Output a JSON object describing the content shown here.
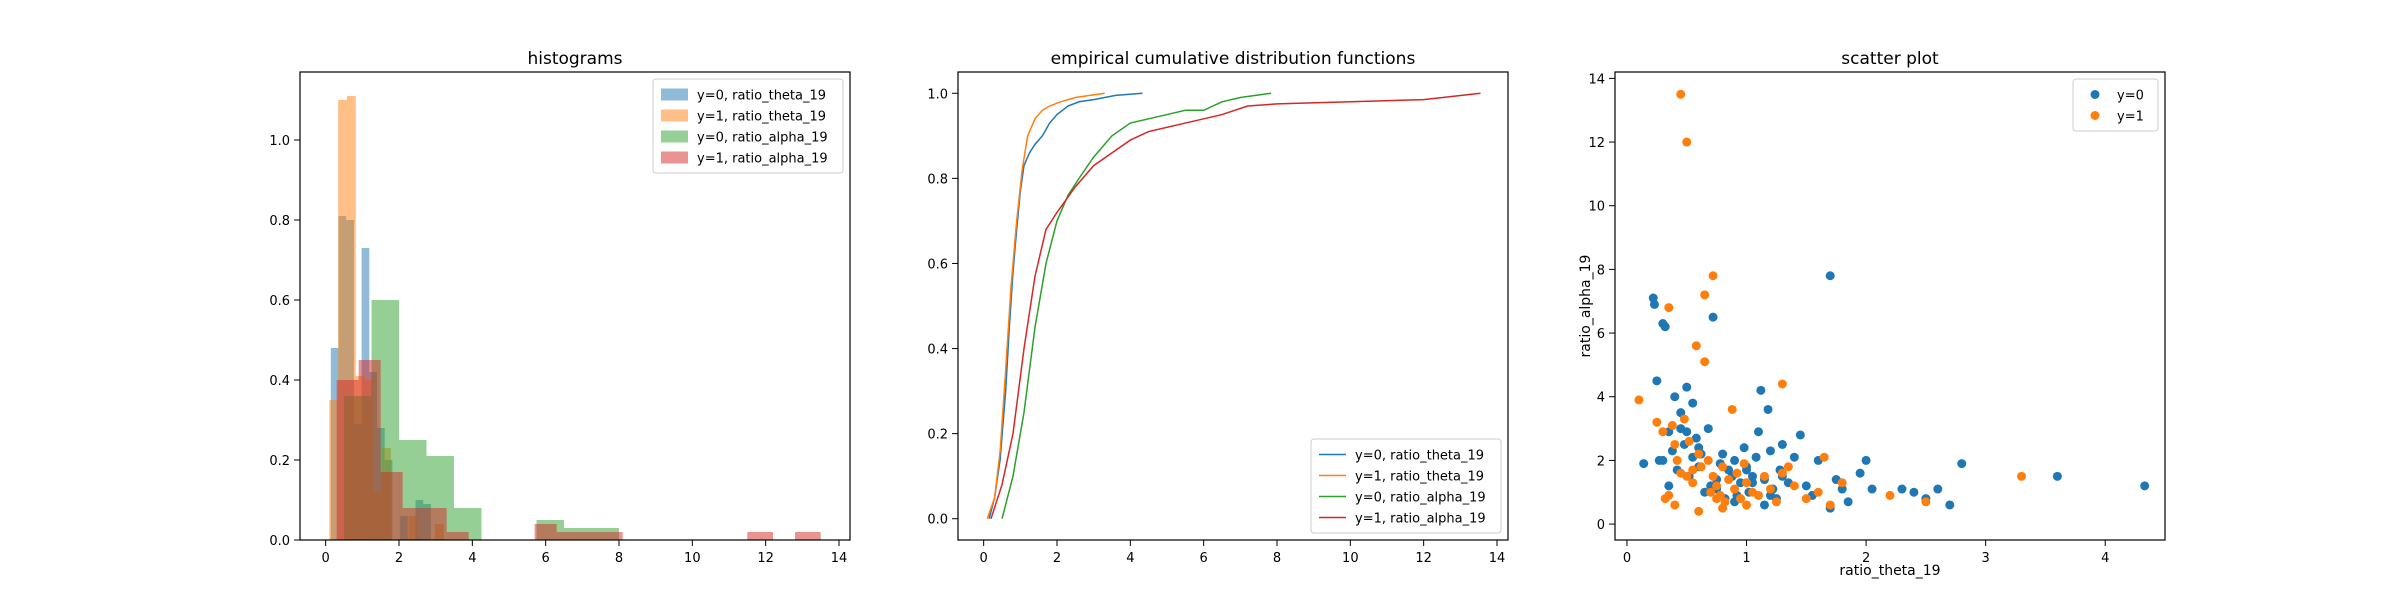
{
  "colors": {
    "blue": "#1f77b4",
    "orange": "#ff7f0e",
    "green": "#2ca02c",
    "red": "#d62728",
    "axis": "#000000",
    "legend_border": "#cccccc"
  },
  "chart_data": [
    {
      "type": "histogram",
      "title": "histograms",
      "xlabel": "",
      "ylabel": "",
      "xlim": [
        -0.7,
        14.3
      ],
      "ylim": [
        0,
        1.17
      ],
      "xticks": [
        "0",
        "2",
        "4",
        "6",
        "8",
        "10",
        "12",
        "14"
      ],
      "yticks": [
        "0.0",
        "0.2",
        "0.4",
        "0.6",
        "0.8",
        "1.0"
      ],
      "legend_position": "top-right",
      "series": [
        {
          "name": "y=0, ratio_theta_19",
          "color": "#1f77b4",
          "alpha": 0.5,
          "bin_edges": [
            0.14,
            0.35,
            0.56,
            0.77,
            0.98,
            1.19,
            1.4,
            1.61,
            1.82,
            2.03,
            2.24,
            2.45,
            2.66,
            2.87
          ],
          "values": [
            0.48,
            0.81,
            0.8,
            0.29,
            0.73,
            0.42,
            0.28,
            0.2,
            0.0,
            0.06,
            0.0,
            0.1,
            0.09
          ]
        },
        {
          "name": "y=1, ratio_theta_19",
          "color": "#ff7f0e",
          "alpha": 0.5,
          "bin_edges": [
            0.1,
            0.34,
            0.58,
            0.82,
            1.06,
            1.3,
            1.54,
            1.78,
            2.02,
            2.26,
            2.5,
            2.74,
            2.98,
            3.22
          ],
          "values": [
            0.35,
            1.1,
            1.11,
            0.41,
            0.4,
            0.12,
            0.23,
            0.0,
            0.0,
            0.06,
            0.0,
            0.0,
            0.04
          ]
        },
        {
          "name": "y=0, ratio_alpha_19",
          "color": "#2ca02c",
          "alpha": 0.5,
          "bin_edges": [
            0.5,
            1.25,
            2.0,
            2.75,
            3.5,
            4.25,
            5.0,
            5.75,
            6.5,
            7.25,
            8.0
          ],
          "values": [
            0.36,
            0.6,
            0.25,
            0.21,
            0.08,
            0.0,
            0.0,
            0.05,
            0.03,
            0.03
          ]
        },
        {
          "name": "y=1, ratio_alpha_19",
          "color": "#d62728",
          "alpha": 0.5,
          "bin_edges": [
            0.3,
            0.9,
            1.5,
            2.1,
            2.7,
            3.3,
            3.9,
            4.5,
            5.1,
            5.7,
            6.3,
            6.9,
            7.5,
            8.1
          ],
          "values": [
            0.4,
            0.45,
            0.17,
            0.08,
            0.08,
            0.02,
            0.0,
            0.0,
            0.0,
            0.04,
            0.02,
            0.02,
            0.02
          ],
          "extra_bars": [
            {
              "x0": 11.5,
              "x1": 12.2,
              "value": 0.02
            },
            {
              "x0": 12.8,
              "x1": 13.5,
              "value": 0.02
            }
          ]
        }
      ]
    },
    {
      "type": "line",
      "title": "empirical cumulative distribution functions",
      "xlabel": "",
      "ylabel": "",
      "xlim": [
        -0.7,
        14.3
      ],
      "ylim": [
        -0.05,
        1.05
      ],
      "xticks": [
        "0",
        "2",
        "4",
        "6",
        "8",
        "10",
        "12",
        "14"
      ],
      "yticks": [
        "0.0",
        "0.2",
        "0.4",
        "0.6",
        "0.8",
        "1.0"
      ],
      "legend_position": "bottom-right",
      "series": [
        {
          "name": "y=0, ratio_theta_19",
          "color": "#1f77b4",
          "x": [
            0.15,
            0.3,
            0.45,
            0.6,
            0.7,
            0.8,
            0.9,
            1.0,
            1.1,
            1.25,
            1.4,
            1.6,
            1.8,
            2.0,
            2.3,
            2.6,
            3.0,
            3.6,
            4.33
          ],
          "y": [
            0.0,
            0.05,
            0.14,
            0.3,
            0.45,
            0.58,
            0.68,
            0.77,
            0.83,
            0.86,
            0.88,
            0.9,
            0.93,
            0.95,
            0.97,
            0.98,
            0.985,
            0.995,
            1.0
          ]
        },
        {
          "name": "y=1, ratio_theta_19",
          "color": "#ff7f0e",
          "x": [
            0.1,
            0.3,
            0.45,
            0.6,
            0.75,
            0.9,
            1.05,
            1.2,
            1.4,
            1.6,
            1.8,
            2.1,
            2.5,
            3.3
          ],
          "y": [
            0.0,
            0.05,
            0.16,
            0.35,
            0.55,
            0.7,
            0.82,
            0.9,
            0.94,
            0.96,
            0.97,
            0.98,
            0.99,
            1.0
          ]
        },
        {
          "name": "y=0, ratio_alpha_19",
          "color": "#2ca02c",
          "x": [
            0.5,
            0.8,
            1.1,
            1.4,
            1.7,
            2.0,
            2.3,
            2.6,
            3.0,
            3.5,
            4.0,
            4.5,
            5.0,
            5.5,
            6.0,
            6.5,
            7.0,
            7.84
          ],
          "y": [
            0.0,
            0.1,
            0.25,
            0.45,
            0.6,
            0.7,
            0.76,
            0.8,
            0.85,
            0.9,
            0.93,
            0.94,
            0.95,
            0.96,
            0.96,
            0.98,
            0.99,
            1.0
          ]
        },
        {
          "name": "y=1, ratio_alpha_19",
          "color": "#d62728",
          "x": [
            0.2,
            0.5,
            0.8,
            1.1,
            1.4,
            1.7,
            2.0,
            2.5,
            3.0,
            3.5,
            4.0,
            4.5,
            5.5,
            6.5,
            7.2,
            8.0,
            12.0,
            13.55
          ],
          "y": [
            0.0,
            0.08,
            0.2,
            0.4,
            0.57,
            0.68,
            0.72,
            0.78,
            0.83,
            0.86,
            0.89,
            0.91,
            0.93,
            0.95,
            0.97,
            0.975,
            0.985,
            1.0
          ]
        }
      ]
    },
    {
      "type": "scatter",
      "title": "scatter plot",
      "xlabel": "ratio_theta_19",
      "ylabel": "ratio_alpha_19",
      "xlim": [
        -0.1,
        4.5
      ],
      "ylim": [
        -0.5,
        14.2
      ],
      "xticks": [
        "0",
        "1",
        "2",
        "3",
        "4"
      ],
      "yticks": [
        "0",
        "2",
        "4",
        "6",
        "8",
        "10",
        "12",
        "14"
      ],
      "legend_position": "top-right",
      "series": [
        {
          "name": "y=0",
          "color": "#1f77b4",
          "x": [
            0.14,
            0.22,
            0.23,
            0.27,
            0.3,
            0.32,
            0.35,
            0.38,
            0.4,
            0.42,
            0.45,
            0.48,
            0.5,
            0.52,
            0.55,
            0.58,
            0.6,
            0.62,
            0.65,
            0.68,
            0.7,
            0.72,
            0.75,
            0.78,
            0.8,
            0.82,
            0.85,
            0.88,
            0.9,
            0.92,
            0.95,
            0.98,
            1.0,
            1.02,
            1.05,
            1.08,
            1.1,
            1.12,
            1.15,
            1.18,
            1.2,
            1.22,
            1.25,
            1.28,
            1.3,
            1.35,
            1.4,
            1.45,
            1.5,
            1.55,
            1.6,
            1.7,
            1.75,
            1.8,
            1.85,
            1.95,
            2.0,
            2.05,
            2.3,
            2.4,
            2.5,
            2.6,
            2.7,
            2.8,
            3.6,
            4.33,
            0.25,
            0.3,
            0.45,
            0.55,
            0.75,
            1.0,
            1.2,
            1.3,
            1.7,
            0.35,
            0.5,
            0.6,
            0.9,
            1.05,
            1.15
          ],
          "y": [
            1.9,
            7.1,
            6.9,
            2.0,
            6.3,
            6.2,
            2.9,
            2.3,
            4.0,
            1.7,
            3.5,
            2.5,
            4.3,
            1.5,
            2.1,
            2.7,
            1.8,
            2.2,
            1.0,
            3.0,
            1.2,
            6.5,
            1.4,
            1.9,
            2.2,
            0.8,
            1.7,
            1.5,
            2.0,
            0.9,
            1.3,
            2.4,
            1.8,
            1.0,
            1.5,
            2.1,
            2.9,
            4.2,
            1.4,
            3.6,
            2.3,
            1.1,
            0.8,
            1.7,
            2.5,
            1.3,
            2.1,
            2.8,
            1.2,
            0.9,
            2.0,
            7.8,
            1.4,
            1.1,
            0.7,
            1.6,
            2.0,
            1.1,
            1.1,
            1.0,
            0.8,
            1.1,
            0.6,
            1.9,
            1.5,
            1.2,
            4.5,
            2.0,
            3.0,
            3.8,
            1.1,
            1.7,
            0.9,
            1.5,
            0.5,
            1.2,
            2.9,
            2.4,
            0.7,
            1.3,
            0.6
          ]
        },
        {
          "name": "y=1",
          "color": "#ff7f0e",
          "x": [
            0.1,
            0.25,
            0.3,
            0.32,
            0.35,
            0.38,
            0.4,
            0.42,
            0.45,
            0.48,
            0.5,
            0.52,
            0.55,
            0.58,
            0.6,
            0.62,
            0.65,
            0.68,
            0.7,
            0.72,
            0.75,
            0.78,
            0.8,
            0.82,
            0.85,
            0.88,
            0.9,
            0.92,
            0.95,
            0.98,
            1.0,
            1.05,
            1.1,
            1.15,
            1.2,
            1.25,
            1.3,
            1.35,
            1.4,
            1.5,
            1.6,
            1.65,
            1.7,
            1.8,
            2.2,
            2.5,
            3.3,
            0.45,
            0.5,
            0.65,
            0.72,
            0.35,
            0.4,
            0.6,
            0.8,
            1.0,
            1.3,
            0.55,
            0.75
          ],
          "y": [
            3.9,
            3.2,
            2.9,
            0.8,
            6.8,
            3.1,
            2.5,
            2.0,
            1.6,
            3.3,
            1.5,
            2.6,
            1.3,
            5.6,
            2.2,
            1.8,
            5.1,
            2.0,
            1.0,
            1.5,
            1.2,
            0.9,
            1.8,
            0.7,
            1.4,
            3.6,
            1.1,
            1.6,
            0.8,
            1.9,
            1.3,
            1.0,
            0.9,
            1.5,
            1.1,
            0.7,
            4.4,
            1.8,
            1.2,
            0.8,
            1.0,
            2.1,
            0.6,
            1.3,
            0.9,
            0.7,
            1.5,
            13.5,
            12.0,
            7.2,
            7.8,
            0.9,
            0.6,
            0.4,
            0.5,
            0.6,
            1.6,
            1.7,
            0.8
          ]
        }
      ]
    }
  ]
}
